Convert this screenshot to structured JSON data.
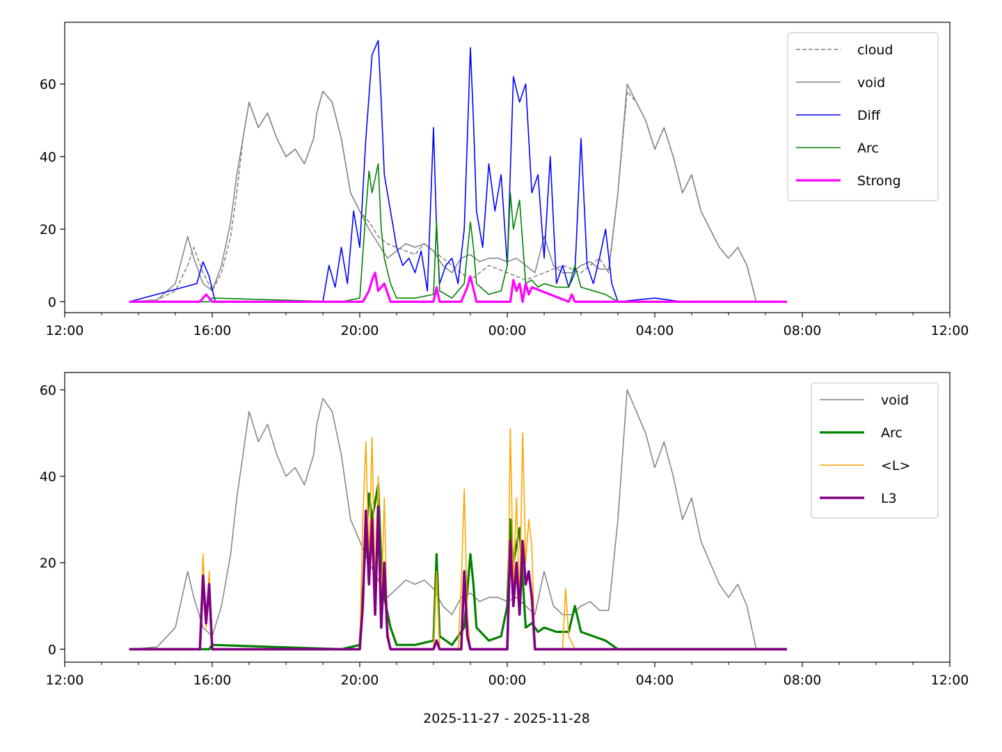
{
  "xlabel": "2025-11-27 - 2025-11-28",
  "xticks": [
    "12:00",
    "16:00",
    "20:00",
    "00:00",
    "04:00",
    "08:00",
    "12:00"
  ],
  "xrange_hours": [
    12,
    36
  ],
  "colors": {
    "cloud": "#808080",
    "void": "#808080",
    "Diff": "#0000ff",
    "Arc": "#008000",
    "Strong": "#ff00ff",
    "L": "#ffa500",
    "L3": "#800080"
  },
  "chart_data": [
    {
      "type": "line",
      "title": "",
      "ylabel": "",
      "ylim": [
        -3,
        77
      ],
      "yticks": [
        0,
        20,
        40,
        60
      ],
      "legend": "top-right",
      "series": [
        {
          "name": "cloud",
          "style": "dashed",
          "x": [
            "13:45",
            "14:30",
            "15:00",
            "15:20",
            "15:30",
            "15:45",
            "16:00",
            "16:15",
            "16:30",
            "16:40",
            "16:50",
            "17:00",
            "17:15",
            "17:30",
            "17:45",
            "18:00",
            "18:15",
            "18:30",
            "18:45",
            "18:50",
            "19:00",
            "19:15",
            "19:30",
            "19:45",
            "20:00",
            "20:15",
            "20:30",
            "20:45",
            "21:00",
            "21:15",
            "21:30",
            "21:45",
            "22:00",
            "22:15",
            "22:30",
            "22:45",
            "23:00",
            "23:15",
            "23:30",
            "23:45",
            "00:00",
            "00:15",
            "00:30",
            "00:45",
            "01:00",
            "01:15",
            "01:30",
            "01:45",
            "02:00",
            "02:15",
            "02:30",
            "02:45",
            "03:00",
            "03:15",
            "03:30",
            "03:45",
            "04:00",
            "04:15",
            "04:30",
            "04:45",
            "05:00",
            "05:15",
            "05:30",
            "05:45",
            "06:00",
            "06:15",
            "06:30",
            "06:45",
            "07:00",
            "07:35"
          ],
          "y": [
            0,
            0.5,
            3,
            10,
            15,
            8,
            3,
            8,
            18,
            30,
            45,
            55,
            48,
            52,
            45,
            40,
            42,
            38,
            45,
            52,
            58,
            55,
            45,
            30,
            25,
            22,
            18,
            16,
            15,
            14,
            13,
            16,
            14,
            12,
            10,
            8,
            6,
            8,
            10,
            9,
            8,
            7,
            6,
            7,
            8,
            9,
            10,
            9,
            8,
            10,
            12,
            8,
            30,
            58,
            55,
            50,
            42,
            48,
            40,
            30,
            35,
            25,
            20,
            15,
            12,
            15,
            10,
            0,
            0,
            0
          ]
        },
        {
          "name": "void",
          "style": "solid",
          "x": [
            "13:45",
            "14:30",
            "15:00",
            "15:20",
            "15:30",
            "15:45",
            "16:00",
            "16:15",
            "16:30",
            "16:40",
            "16:50",
            "17:00",
            "17:15",
            "17:30",
            "17:45",
            "18:00",
            "18:15",
            "18:30",
            "18:45",
            "18:50",
            "19:00",
            "19:15",
            "19:30",
            "19:45",
            "20:00",
            "20:15",
            "20:30",
            "20:45",
            "21:00",
            "21:15",
            "21:30",
            "21:45",
            "22:00",
            "22:15",
            "22:30",
            "22:45",
            "23:00",
            "23:15",
            "23:30",
            "23:45",
            "00:00",
            "00:15",
            "00:30",
            "00:45",
            "01:00",
            "01:15",
            "01:30",
            "01:45",
            "02:00",
            "02:15",
            "02:30",
            "02:45",
            "03:00",
            "03:15",
            "03:30",
            "03:45",
            "04:00",
            "04:15",
            "04:30",
            "04:45",
            "05:00",
            "05:15",
            "05:30",
            "05:45",
            "06:00",
            "06:15",
            "06:30",
            "06:45",
            "07:00",
            "07:35"
          ],
          "y": [
            0,
            0.5,
            5,
            18,
            12,
            5,
            3,
            10,
            22,
            35,
            45,
            55,
            48,
            52,
            45,
            40,
            42,
            38,
            45,
            52,
            58,
            55,
            45,
            30,
            25,
            20,
            16,
            12,
            14,
            16,
            15,
            16,
            14,
            10,
            8,
            12,
            13,
            11,
            12,
            12,
            11,
            12,
            10,
            8,
            18,
            10,
            8,
            8,
            10,
            11,
            9,
            9,
            30,
            60,
            55,
            50,
            42,
            48,
            40,
            30,
            35,
            25,
            20,
            15,
            12,
            15,
            10,
            0,
            0,
            0
          ]
        },
        {
          "name": "Diff",
          "style": "solid",
          "x": [
            "13:45",
            "15:35",
            "15:45",
            "15:55",
            "16:05",
            "19:00",
            "19:10",
            "19:20",
            "19:30",
            "19:40",
            "19:50",
            "20:00",
            "20:10",
            "20:20",
            "20:30",
            "20:35",
            "20:40",
            "20:50",
            "21:00",
            "21:10",
            "21:20",
            "21:30",
            "21:40",
            "21:50",
            "22:00",
            "22:05",
            "22:10",
            "22:20",
            "22:30",
            "22:40",
            "22:50",
            "23:00",
            "23:05",
            "23:10",
            "23:20",
            "23:30",
            "23:40",
            "23:50",
            "00:00",
            "00:10",
            "00:20",
            "00:30",
            "00:40",
            "00:50",
            "01:00",
            "01:10",
            "01:20",
            "01:30",
            "01:40",
            "01:50",
            "02:00",
            "02:10",
            "02:20",
            "02:30",
            "02:40",
            "02:50",
            "03:00",
            "04:00",
            "04:45",
            "07:35"
          ],
          "y": [
            0,
            5,
            11,
            7,
            0,
            0,
            10,
            4,
            15,
            5,
            25,
            15,
            45,
            68,
            72,
            55,
            35,
            25,
            15,
            10,
            12,
            8,
            14,
            3,
            48,
            20,
            5,
            10,
            12,
            5,
            20,
            70,
            50,
            25,
            15,
            38,
            25,
            35,
            10,
            62,
            55,
            60,
            30,
            35,
            12,
            40,
            5,
            10,
            4,
            8,
            45,
            10,
            5,
            12,
            20,
            5,
            0,
            1,
            0,
            0
          ]
        },
        {
          "name": "Arc",
          "style": "solid",
          "x": [
            "13:45",
            "15:55",
            "16:00",
            "19:30",
            "20:00",
            "20:10",
            "20:15",
            "20:20",
            "20:25",
            "20:30",
            "20:35",
            "20:40",
            "20:50",
            "21:00",
            "21:30",
            "22:00",
            "22:05",
            "22:10",
            "22:30",
            "22:50",
            "23:00",
            "23:05",
            "23:10",
            "23:30",
            "23:50",
            "00:00",
            "00:05",
            "00:10",
            "00:20",
            "00:30",
            "00:40",
            "00:50",
            "01:00",
            "01:20",
            "01:40",
            "01:50",
            "02:00",
            "02:20",
            "02:40",
            "03:00",
            "07:35"
          ],
          "y": [
            0,
            0,
            1,
            0,
            1,
            25,
            36,
            30,
            34,
            38,
            20,
            12,
            5,
            1,
            1,
            2,
            22,
            3,
            1,
            5,
            22,
            15,
            5,
            2,
            3,
            10,
            30,
            20,
            28,
            5,
            6,
            4,
            5,
            4,
            4,
            10,
            4,
            3,
            2,
            0,
            0
          ]
        },
        {
          "name": "Strong",
          "style": "solid",
          "x": [
            "13:45",
            "15:40",
            "15:50",
            "16:00",
            "20:05",
            "20:15",
            "20:20",
            "20:25",
            "20:30",
            "20:40",
            "20:50",
            "22:00",
            "22:05",
            "22:10",
            "22:45",
            "22:55",
            "23:00",
            "23:10",
            "00:05",
            "00:10",
            "00:15",
            "00:20",
            "00:25",
            "00:30",
            "00:35",
            "00:40",
            "01:40",
            "01:45",
            "01:50",
            "07:35"
          ],
          "y": [
            0,
            0,
            2,
            0,
            0,
            3,
            6,
            8,
            3,
            5,
            0,
            0,
            4,
            0,
            0,
            4,
            7,
            0,
            0,
            6,
            3,
            5,
            0,
            5,
            2,
            4,
            0,
            2,
            0,
            0
          ]
        }
      ]
    },
    {
      "type": "line",
      "title": "",
      "ylabel": "",
      "ylim": [
        -3,
        64
      ],
      "yticks": [
        0,
        20,
        40,
        60
      ],
      "legend": "top-right",
      "series": [
        {
          "name": "void",
          "style": "solid",
          "x": [
            "13:45",
            "14:30",
            "15:00",
            "15:20",
            "15:30",
            "15:45",
            "16:00",
            "16:15",
            "16:30",
            "16:40",
            "16:50",
            "17:00",
            "17:15",
            "17:30",
            "17:45",
            "18:00",
            "18:15",
            "18:30",
            "18:45",
            "18:50",
            "19:00",
            "19:15",
            "19:30",
            "19:45",
            "20:00",
            "20:15",
            "20:30",
            "20:45",
            "21:00",
            "21:15",
            "21:30",
            "21:45",
            "22:00",
            "22:15",
            "22:30",
            "22:45",
            "23:00",
            "23:15",
            "23:30",
            "23:45",
            "00:00",
            "00:15",
            "00:30",
            "00:45",
            "01:00",
            "01:15",
            "01:30",
            "01:45",
            "02:00",
            "02:15",
            "02:30",
            "02:45",
            "03:00",
            "03:15",
            "03:30",
            "03:45",
            "04:00",
            "04:15",
            "04:30",
            "04:45",
            "05:00",
            "05:15",
            "05:30",
            "05:45",
            "06:00",
            "06:15",
            "06:30",
            "06:45",
            "07:00",
            "07:35"
          ],
          "y": [
            0,
            0.5,
            5,
            18,
            12,
            5,
            3,
            10,
            22,
            35,
            45,
            55,
            48,
            52,
            45,
            40,
            42,
            38,
            45,
            52,
            58,
            55,
            45,
            30,
            25,
            20,
            16,
            12,
            14,
            16,
            15,
            16,
            14,
            10,
            8,
            12,
            13,
            11,
            12,
            12,
            11,
            12,
            10,
            8,
            18,
            10,
            8,
            8,
            10,
            11,
            9,
            9,
            30,
            60,
            55,
            50,
            42,
            48,
            40,
            30,
            35,
            25,
            20,
            15,
            12,
            15,
            10,
            0,
            0,
            0
          ]
        },
        {
          "name": "Arc",
          "style": "solid",
          "x": [
            "13:45",
            "15:55",
            "16:00",
            "19:30",
            "20:00",
            "20:10",
            "20:15",
            "20:20",
            "20:25",
            "20:30",
            "20:35",
            "20:40",
            "20:50",
            "21:00",
            "21:30",
            "22:00",
            "22:05",
            "22:10",
            "22:30",
            "22:50",
            "23:00",
            "23:05",
            "23:10",
            "23:30",
            "23:50",
            "00:00",
            "00:05",
            "00:10",
            "00:20",
            "00:30",
            "00:40",
            "00:50",
            "01:00",
            "01:20",
            "01:40",
            "01:50",
            "02:00",
            "02:20",
            "02:40",
            "03:00",
            "07:35"
          ],
          "y": [
            0,
            0,
            1,
            0,
            1,
            25,
            36,
            30,
            34,
            38,
            20,
            12,
            5,
            1,
            1,
            2,
            22,
            3,
            1,
            5,
            22,
            15,
            5,
            2,
            3,
            10,
            30,
            20,
            28,
            5,
            6,
            4,
            5,
            4,
            4,
            10,
            4,
            3,
            2,
            0,
            0
          ]
        },
        {
          "name": "<L>",
          "style": "solid",
          "x": [
            "13:45",
            "15:40",
            "15:45",
            "15:50",
            "15:55",
            "16:00",
            "20:00",
            "20:05",
            "20:10",
            "20:15",
            "20:20",
            "20:25",
            "20:30",
            "20:35",
            "20:40",
            "20:45",
            "20:50",
            "22:00",
            "22:05",
            "22:10",
            "22:40",
            "22:45",
            "22:50",
            "22:55",
            "23:00",
            "00:00",
            "00:05",
            "00:10",
            "00:15",
            "00:20",
            "00:25",
            "00:30",
            "00:35",
            "00:40",
            "00:45",
            "01:30",
            "01:35",
            "01:40",
            "01:50",
            "07:35"
          ],
          "y": [
            0,
            0,
            22,
            5,
            18,
            0,
            0,
            30,
            48,
            20,
            49,
            15,
            40,
            10,
            35,
            5,
            0,
            0,
            18,
            0,
            0,
            15,
            37,
            8,
            0,
            0,
            51,
            15,
            35,
            10,
            50,
            20,
            30,
            24,
            0,
            0,
            14,
            3,
            0,
            0
          ]
        },
        {
          "name": "L3",
          "style": "solid",
          "x": [
            "13:45",
            "15:40",
            "15:45",
            "15:50",
            "15:55",
            "16:00",
            "20:00",
            "20:05",
            "20:10",
            "20:15",
            "20:20",
            "20:25",
            "20:30",
            "20:35",
            "20:40",
            "20:45",
            "20:50",
            "22:00",
            "22:05",
            "22:10",
            "22:45",
            "22:50",
            "22:55",
            "23:00",
            "00:00",
            "00:05",
            "00:10",
            "00:15",
            "00:20",
            "00:25",
            "00:30",
            "00:35",
            "00:40",
            "00:45",
            "07:35"
          ],
          "y": [
            0,
            0,
            17,
            6,
            15,
            0,
            0,
            10,
            32,
            15,
            30,
            8,
            33,
            5,
            20,
            3,
            0,
            0,
            2,
            0,
            0,
            18,
            3,
            0,
            0,
            25,
            10,
            20,
            8,
            25,
            15,
            18,
            12,
            0,
            0
          ]
        }
      ]
    }
  ]
}
